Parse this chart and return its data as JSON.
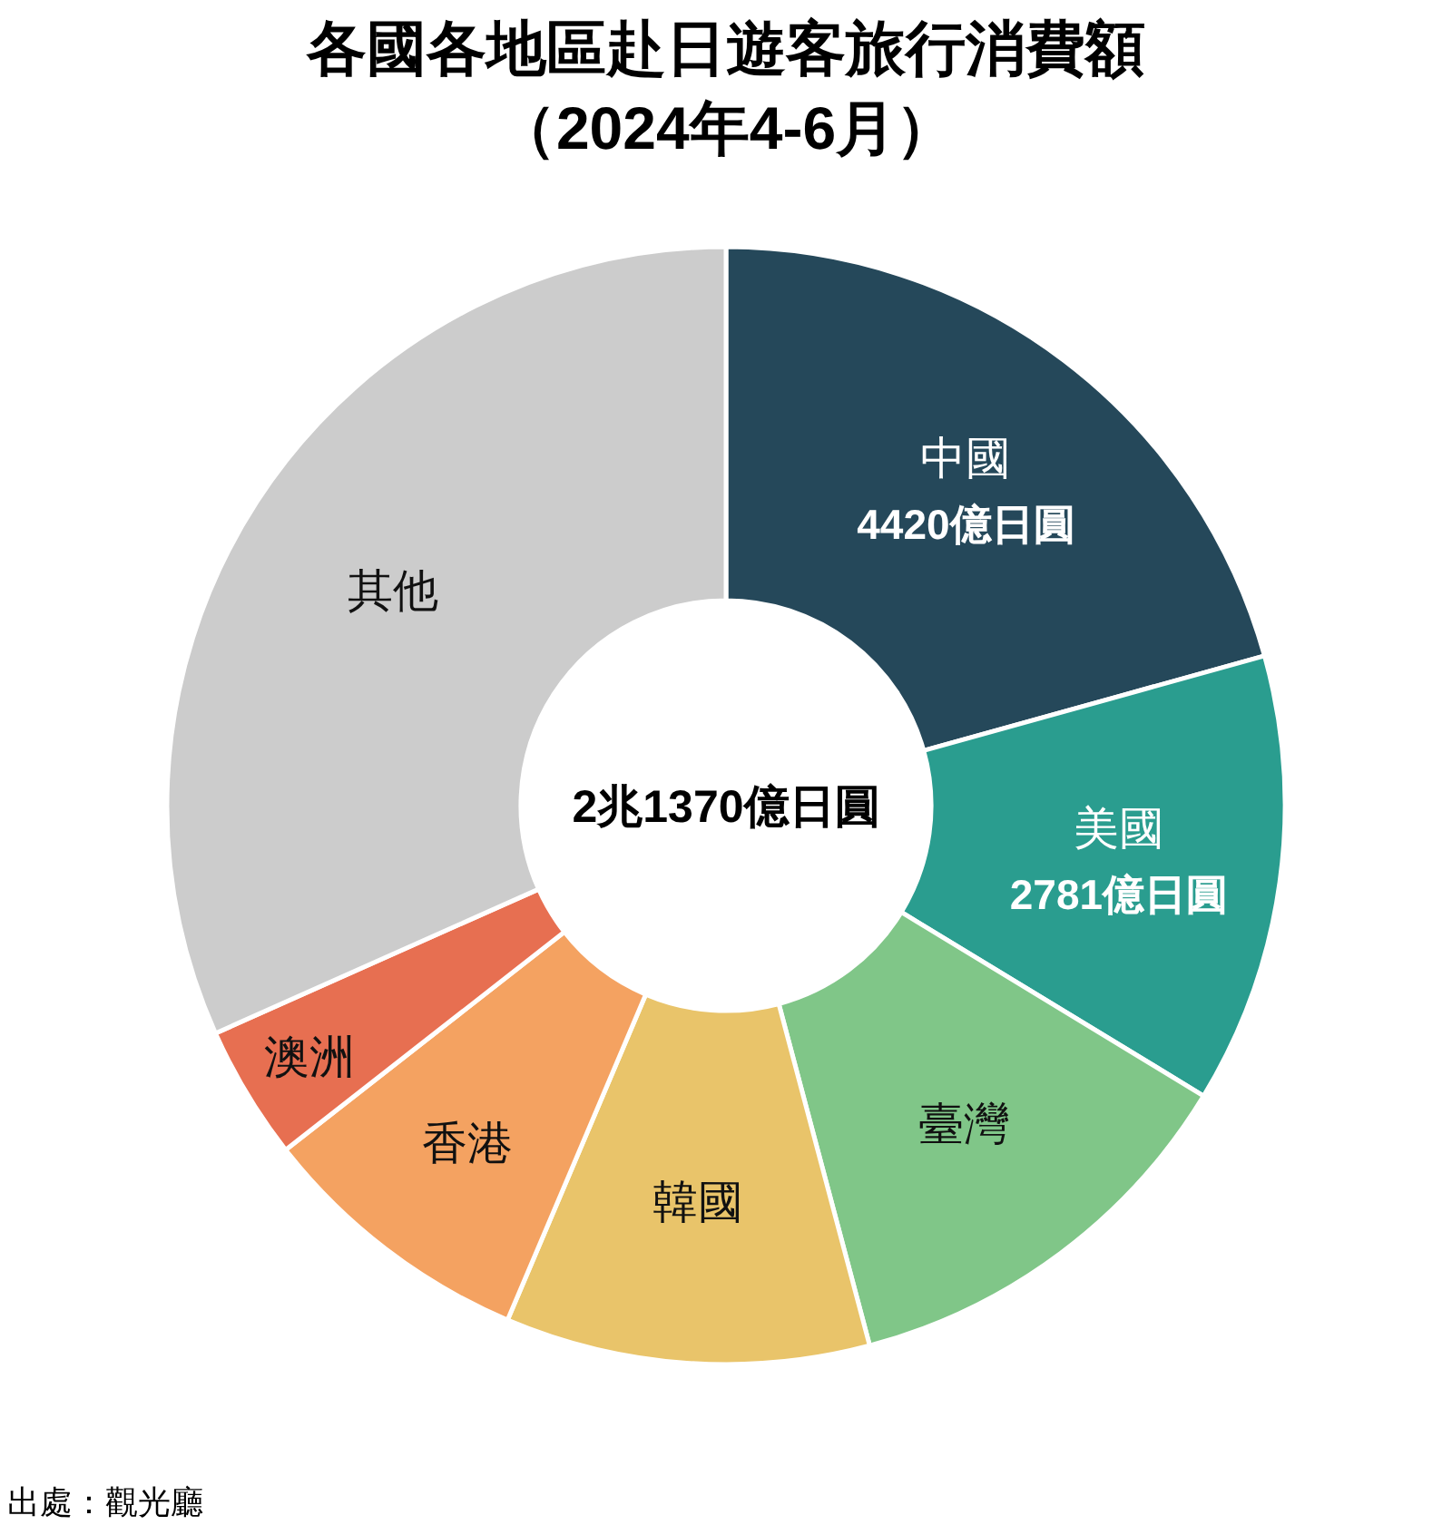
{
  "chart_data": {
    "type": "donut",
    "title": "各國各地區赴日遊客旅行消費額",
    "subtitle": "（2024年4-6月）",
    "categories": [
      "中國",
      "美國",
      "臺灣",
      "韓國",
      "香港",
      "澳洲",
      "其他"
    ],
    "values": [
      4420,
      2781,
      2600,
      2250,
      1720,
      830,
      6770
    ],
    "colors": [
      "#25485a",
      "#2a9d8f",
      "#80c688",
      "#e9c46a",
      "#f4a261",
      "#e76f51",
      "#cccccc"
    ],
    "value_labels": [
      "4420億日圓",
      "2781億日圓",
      null,
      null,
      null,
      null,
      null
    ],
    "annotations": [
      "2兆1370億日圓",
      "出處：觀光廳"
    ]
  }
}
